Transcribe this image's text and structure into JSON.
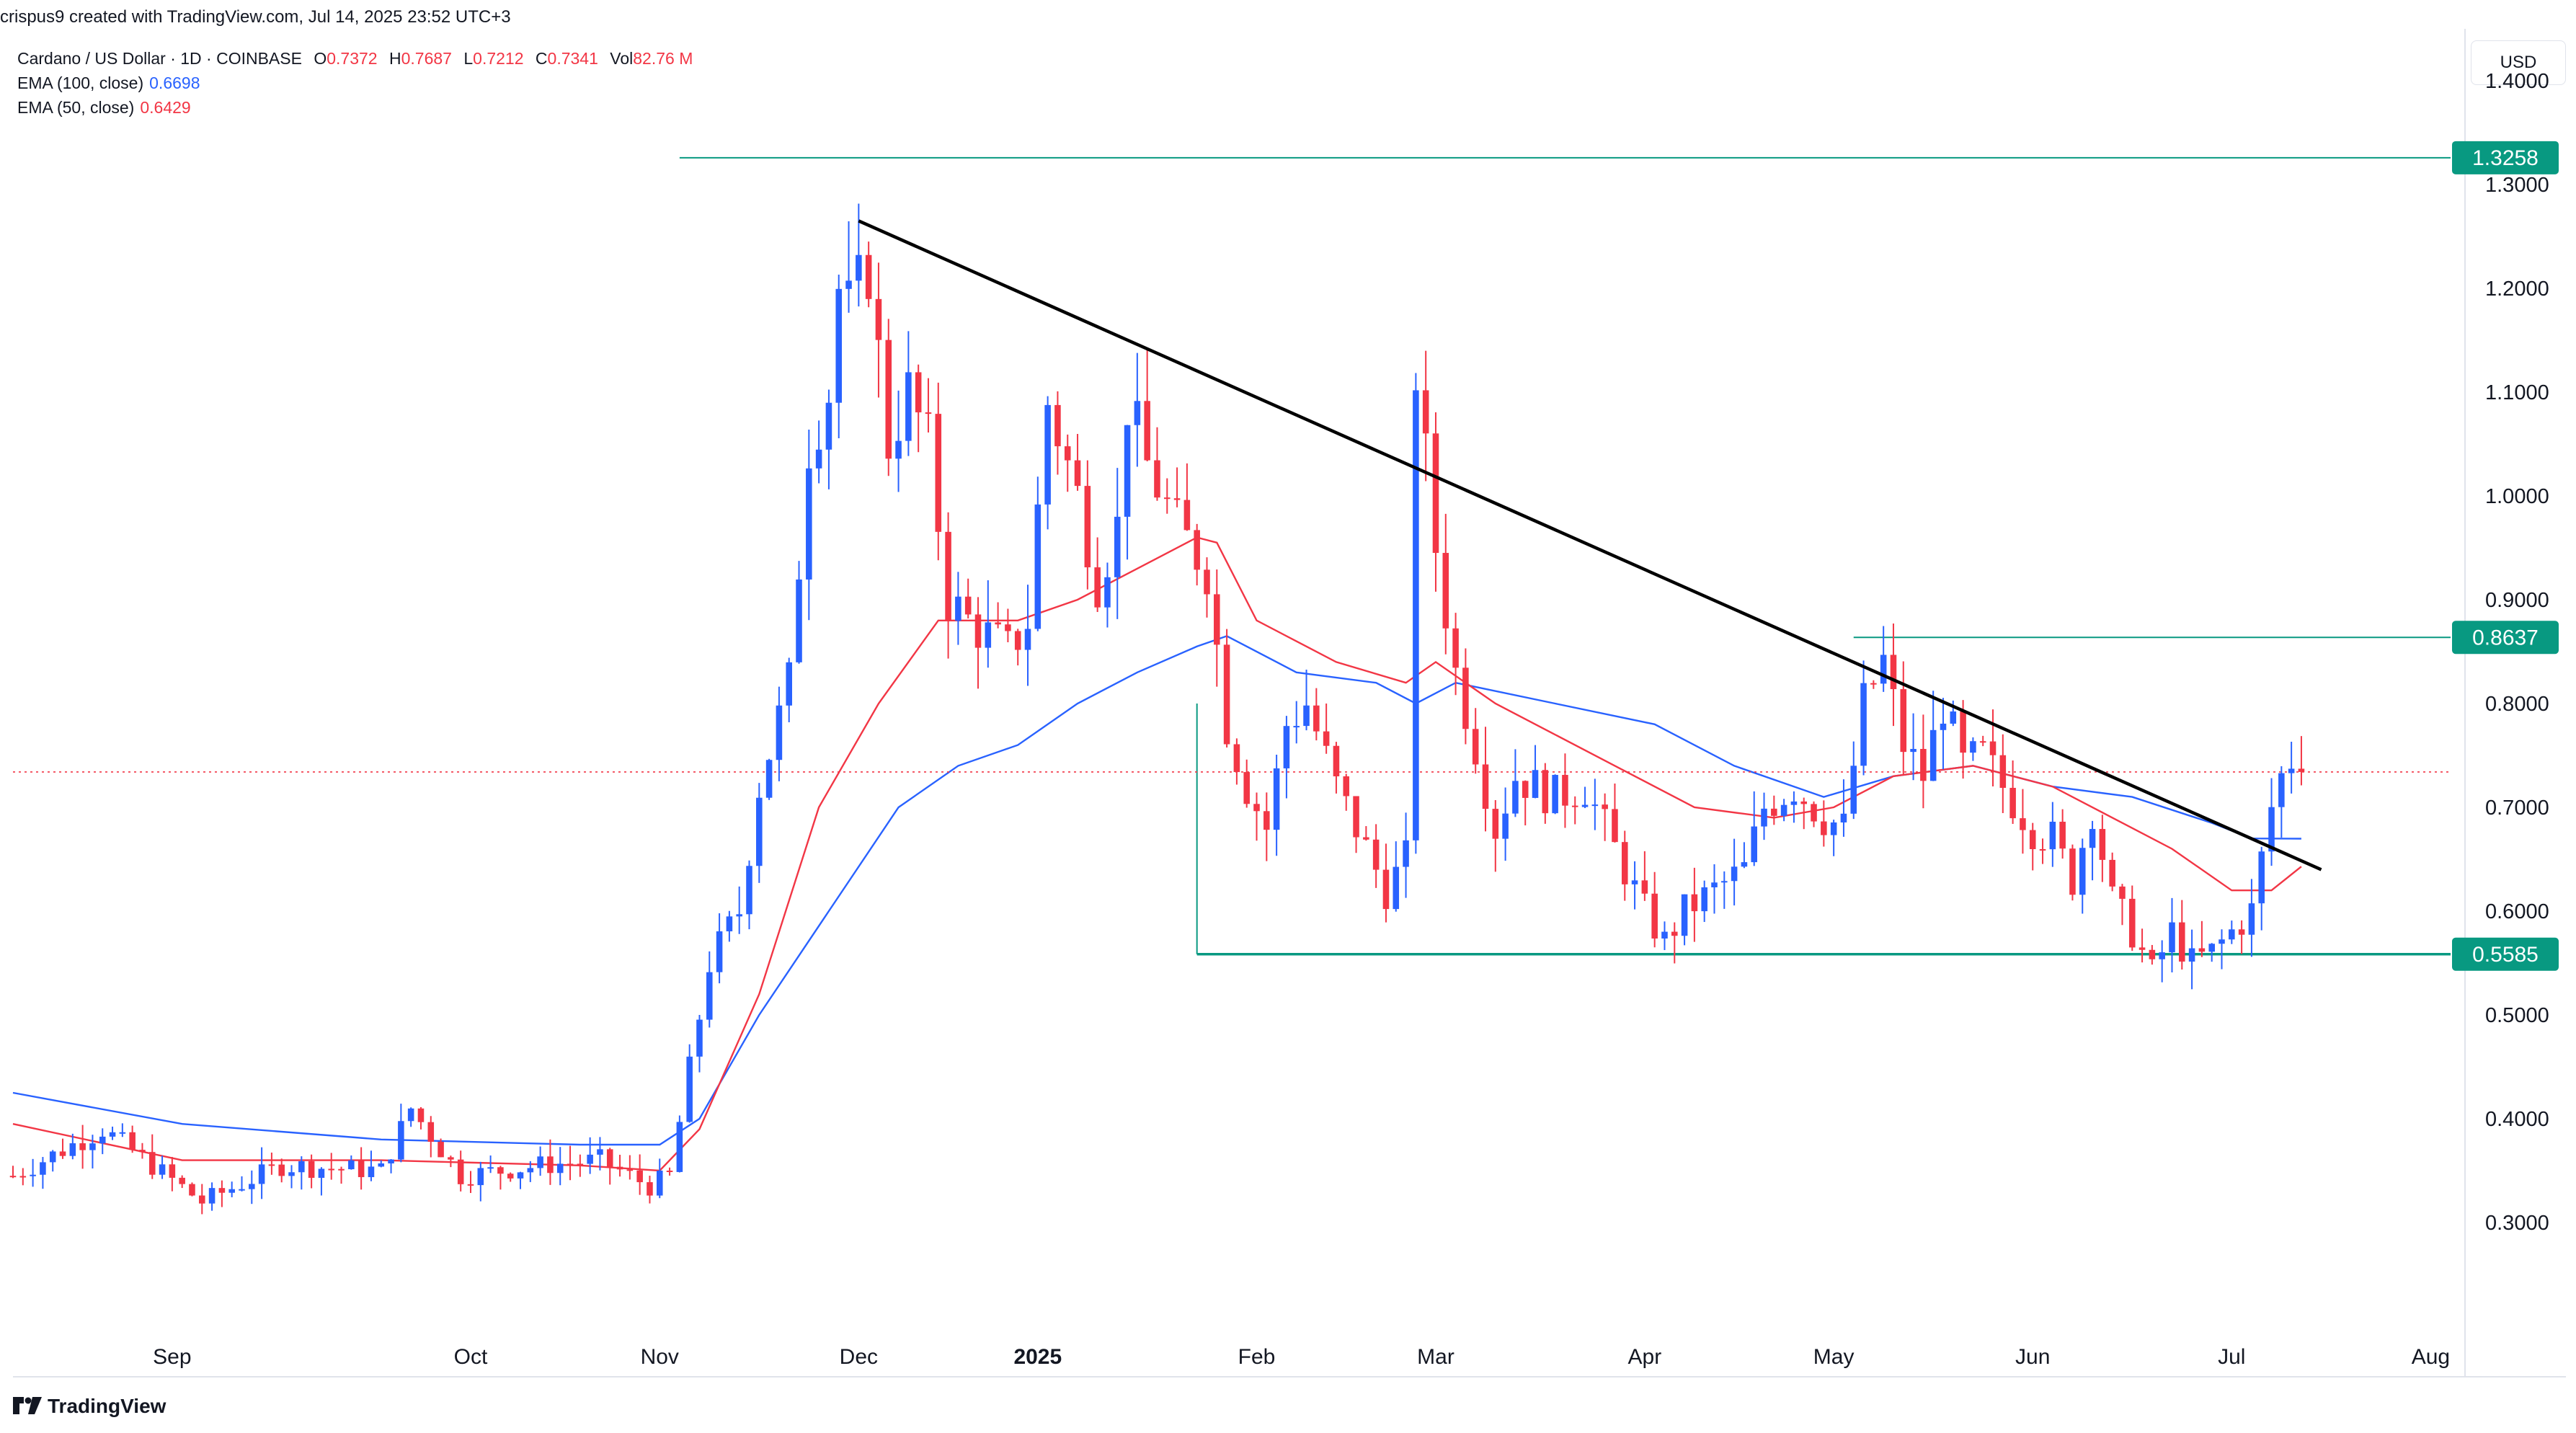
{
  "credit": "crispus9 created with TradingView.com, Jul 14, 2025 23:52 UTC+3",
  "legend": {
    "symbol": "Cardano / US Dollar · 1D · COINBASE",
    "open_label": "O",
    "open": "0.7372",
    "high_label": "H",
    "high": "0.7687",
    "low_label": "L",
    "low": "0.7212",
    "close_label": "C",
    "close": "0.7341",
    "vol_label": "Vol",
    "vol": "82.76 M",
    "ema100_label": "EMA (100, close)",
    "ema100_value": "0.6698",
    "ema50_label": "EMA (50, close)",
    "ema50_value": "0.6429"
  },
  "currency_button": "USD",
  "footer_brand": "TradingView",
  "colors": {
    "up": "#2962ff",
    "down": "#f23645",
    "ema100": "#2962ff",
    "ema50": "#f23645",
    "level": "#089981",
    "trend": "#000000",
    "grid": "#f0f3fa"
  },
  "chart_data": {
    "type": "candlestick",
    "title": "Cardano / US Dollar · 1D · COINBASE",
    "y_range": [
      0.2,
      1.45
    ],
    "x_range_days": [
      -37,
      208
    ],
    "y_ticks": [
      "0.3000",
      "0.4000",
      "0.5000",
      "0.6000",
      "0.7000",
      "0.8000",
      "0.9000",
      "1.0000",
      "1.1000",
      "1.2000",
      "1.3000",
      "1.4000"
    ],
    "x_ticks": [
      {
        "label": "Sep",
        "day": -21,
        "bold": false
      },
      {
        "label": "Oct",
        "day": 9,
        "bold": false
      },
      {
        "label": "Nov",
        "day": 28,
        "bold": false
      },
      {
        "label": "Dec",
        "day": 48,
        "bold": false
      },
      {
        "label": "2025",
        "day": 66,
        "bold": true
      },
      {
        "label": "Feb",
        "day": 88,
        "bold": false
      },
      {
        "label": "Mar",
        "day": 106,
        "bold": false
      },
      {
        "label": "Apr",
        "day": 127,
        "bold": false
      },
      {
        "label": "May",
        "day": 146,
        "bold": false
      },
      {
        "label": "Jun",
        "day": 166,
        "bold": false
      },
      {
        "label": "Jul",
        "day": 186,
        "bold": false
      },
      {
        "label": "Aug",
        "day": 206,
        "bold": false
      }
    ],
    "levels": [
      {
        "value": 1.3258,
        "label": "1.3258",
        "from_day": 30
      },
      {
        "value": 0.8637,
        "label": "0.8637",
        "from_day": 148
      },
      {
        "value": 0.5585,
        "label": "0.5585",
        "from_day": 82
      }
    ],
    "trendline": {
      "from": {
        "day": 48,
        "price": 1.265
      },
      "to": {
        "day": 195,
        "price": 0.64
      }
    },
    "current_price": 0.7341,
    "price_keypoints": [
      {
        "day": -37,
        "price": 0.345
      },
      {
        "day": -28,
        "price": 0.39
      },
      {
        "day": -18,
        "price": 0.32
      },
      {
        "day": -10,
        "price": 0.355
      },
      {
        "day": 0,
        "price": 0.35
      },
      {
        "day": 3,
        "price": 0.41
      },
      {
        "day": 8,
        "price": 0.345
      },
      {
        "day": 16,
        "price": 0.355
      },
      {
        "day": 22,
        "price": 0.36
      },
      {
        "day": 27,
        "price": 0.335
      },
      {
        "day": 29,
        "price": 0.345
      },
      {
        "day": 33,
        "price": 0.55
      },
      {
        "day": 36,
        "price": 0.6
      },
      {
        "day": 38,
        "price": 0.72
      },
      {
        "day": 41,
        "price": 0.82
      },
      {
        "day": 43,
        "price": 1.05
      },
      {
        "day": 45,
        "price": 1.1
      },
      {
        "day": 46,
        "price": 1.2
      },
      {
        "day": 47,
        "price": 1.18
      },
      {
        "day": 49,
        "price": 1.22
      },
      {
        "day": 51,
        "price": 1.05
      },
      {
        "day": 53,
        "price": 1.1
      },
      {
        "day": 55,
        "price": 1.05
      },
      {
        "day": 57,
        "price": 0.9
      },
      {
        "day": 59,
        "price": 0.88
      },
      {
        "day": 63,
        "price": 0.85
      },
      {
        "day": 65,
        "price": 0.88
      },
      {
        "day": 67,
        "price": 1.09
      },
      {
        "day": 70,
        "price": 1.0
      },
      {
        "day": 72,
        "price": 0.92
      },
      {
        "day": 74,
        "price": 0.97
      },
      {
        "day": 75,
        "price": 1.09
      },
      {
        "day": 77,
        "price": 1.03
      },
      {
        "day": 80,
        "price": 0.97
      },
      {
        "day": 83,
        "price": 0.93
      },
      {
        "day": 85,
        "price": 0.78
      },
      {
        "day": 87,
        "price": 0.72
      },
      {
        "day": 89,
        "price": 0.68
      },
      {
        "day": 91,
        "price": 0.78
      },
      {
        "day": 93,
        "price": 0.8
      },
      {
        "day": 96,
        "price": 0.72
      },
      {
        "day": 99,
        "price": 0.66
      },
      {
        "day": 101,
        "price": 0.62
      },
      {
        "day": 103,
        "price": 0.65
      },
      {
        "day": 104,
        "price": 1.12
      },
      {
        "day": 106,
        "price": 0.95
      },
      {
        "day": 108,
        "price": 0.83
      },
      {
        "day": 110,
        "price": 0.76
      },
      {
        "day": 112,
        "price": 0.68
      },
      {
        "day": 114,
        "price": 0.73
      },
      {
        "day": 118,
        "price": 0.71
      },
      {
        "day": 121,
        "price": 0.72
      },
      {
        "day": 124,
        "price": 0.66
      },
      {
        "day": 127,
        "price": 0.6
      },
      {
        "day": 129,
        "price": 0.57
      },
      {
        "day": 131,
        "price": 0.6
      },
      {
        "day": 134,
        "price": 0.62
      },
      {
        "day": 137,
        "price": 0.64
      },
      {
        "day": 139,
        "price": 0.7
      },
      {
        "day": 142,
        "price": 0.72
      },
      {
        "day": 145,
        "price": 0.69
      },
      {
        "day": 147,
        "price": 0.68
      },
      {
        "day": 149,
        "price": 0.8
      },
      {
        "day": 151,
        "price": 0.84
      },
      {
        "day": 153,
        "price": 0.76
      },
      {
        "day": 155,
        "price": 0.73
      },
      {
        "day": 157,
        "price": 0.8
      },
      {
        "day": 159,
        "price": 0.74
      },
      {
        "day": 161,
        "price": 0.75
      },
      {
        "day": 163,
        "price": 0.72
      },
      {
        "day": 166,
        "price": 0.68
      },
      {
        "day": 168,
        "price": 0.67
      },
      {
        "day": 170,
        "price": 0.63
      },
      {
        "day": 172,
        "price": 0.7
      },
      {
        "day": 174,
        "price": 0.61
      },
      {
        "day": 176,
        "price": 0.58
      },
      {
        "day": 178,
        "price": 0.54
      },
      {
        "day": 180,
        "price": 0.58
      },
      {
        "day": 182,
        "price": 0.55
      },
      {
        "day": 184,
        "price": 0.56
      },
      {
        "day": 186,
        "price": 0.58
      },
      {
        "day": 188,
        "price": 0.6
      },
      {
        "day": 190,
        "price": 0.7
      },
      {
        "day": 191,
        "price": 0.73
      },
      {
        "day": 192,
        "price": 0.7372
      }
    ],
    "last_candle": {
      "day": 193,
      "open": 0.7372,
      "high": 0.7687,
      "low": 0.7212,
      "close": 0.7341
    },
    "series": [
      {
        "name": "EMA (100, close)",
        "color": "#2962ff",
        "points": [
          {
            "day": -37,
            "value": 0.425
          },
          {
            "day": -20,
            "value": 0.395
          },
          {
            "day": 0,
            "value": 0.38
          },
          {
            "day": 20,
            "value": 0.375
          },
          {
            "day": 28,
            "value": 0.375
          },
          {
            "day": 32,
            "value": 0.4
          },
          {
            "day": 38,
            "value": 0.5
          },
          {
            "day": 45,
            "value": 0.6
          },
          {
            "day": 52,
            "value": 0.7
          },
          {
            "day": 58,
            "value": 0.74
          },
          {
            "day": 64,
            "value": 0.76
          },
          {
            "day": 70,
            "value": 0.8
          },
          {
            "day": 76,
            "value": 0.83
          },
          {
            "day": 82,
            "value": 0.855
          },
          {
            "day": 85,
            "value": 0.865
          },
          {
            "day": 92,
            "value": 0.83
          },
          {
            "day": 100,
            "value": 0.82
          },
          {
            "day": 104,
            "value": 0.8
          },
          {
            "day": 108,
            "value": 0.82
          },
          {
            "day": 118,
            "value": 0.8
          },
          {
            "day": 128,
            "value": 0.78
          },
          {
            "day": 136,
            "value": 0.74
          },
          {
            "day": 145,
            "value": 0.71
          },
          {
            "day": 152,
            "value": 0.73
          },
          {
            "day": 160,
            "value": 0.74
          },
          {
            "day": 168,
            "value": 0.72
          },
          {
            "day": 176,
            "value": 0.71
          },
          {
            "day": 184,
            "value": 0.685
          },
          {
            "day": 188,
            "value": 0.67
          },
          {
            "day": 193,
            "value": 0.6698
          }
        ]
      },
      {
        "name": "EMA (50, close)",
        "color": "#f23645",
        "points": [
          {
            "day": -37,
            "value": 0.395
          },
          {
            "day": -20,
            "value": 0.36
          },
          {
            "day": 0,
            "value": 0.36
          },
          {
            "day": 20,
            "value": 0.355
          },
          {
            "day": 28,
            "value": 0.35
          },
          {
            "day": 32,
            "value": 0.39
          },
          {
            "day": 38,
            "value": 0.52
          },
          {
            "day": 44,
            "value": 0.7
          },
          {
            "day": 50,
            "value": 0.8
          },
          {
            "day": 56,
            "value": 0.88
          },
          {
            "day": 64,
            "value": 0.88
          },
          {
            "day": 70,
            "value": 0.9
          },
          {
            "day": 76,
            "value": 0.93
          },
          {
            "day": 82,
            "value": 0.96
          },
          {
            "day": 84,
            "value": 0.955
          },
          {
            "day": 88,
            "value": 0.88
          },
          {
            "day": 96,
            "value": 0.84
          },
          {
            "day": 103,
            "value": 0.82
          },
          {
            "day": 106,
            "value": 0.84
          },
          {
            "day": 112,
            "value": 0.8
          },
          {
            "day": 124,
            "value": 0.74
          },
          {
            "day": 132,
            "value": 0.7
          },
          {
            "day": 140,
            "value": 0.69
          },
          {
            "day": 146,
            "value": 0.7
          },
          {
            "day": 152,
            "value": 0.73
          },
          {
            "day": 160,
            "value": 0.74
          },
          {
            "day": 168,
            "value": 0.72
          },
          {
            "day": 174,
            "value": 0.69
          },
          {
            "day": 180,
            "value": 0.66
          },
          {
            "day": 186,
            "value": 0.62
          },
          {
            "day": 190,
            "value": 0.62
          },
          {
            "day": 193,
            "value": 0.6429
          }
        ]
      }
    ]
  }
}
